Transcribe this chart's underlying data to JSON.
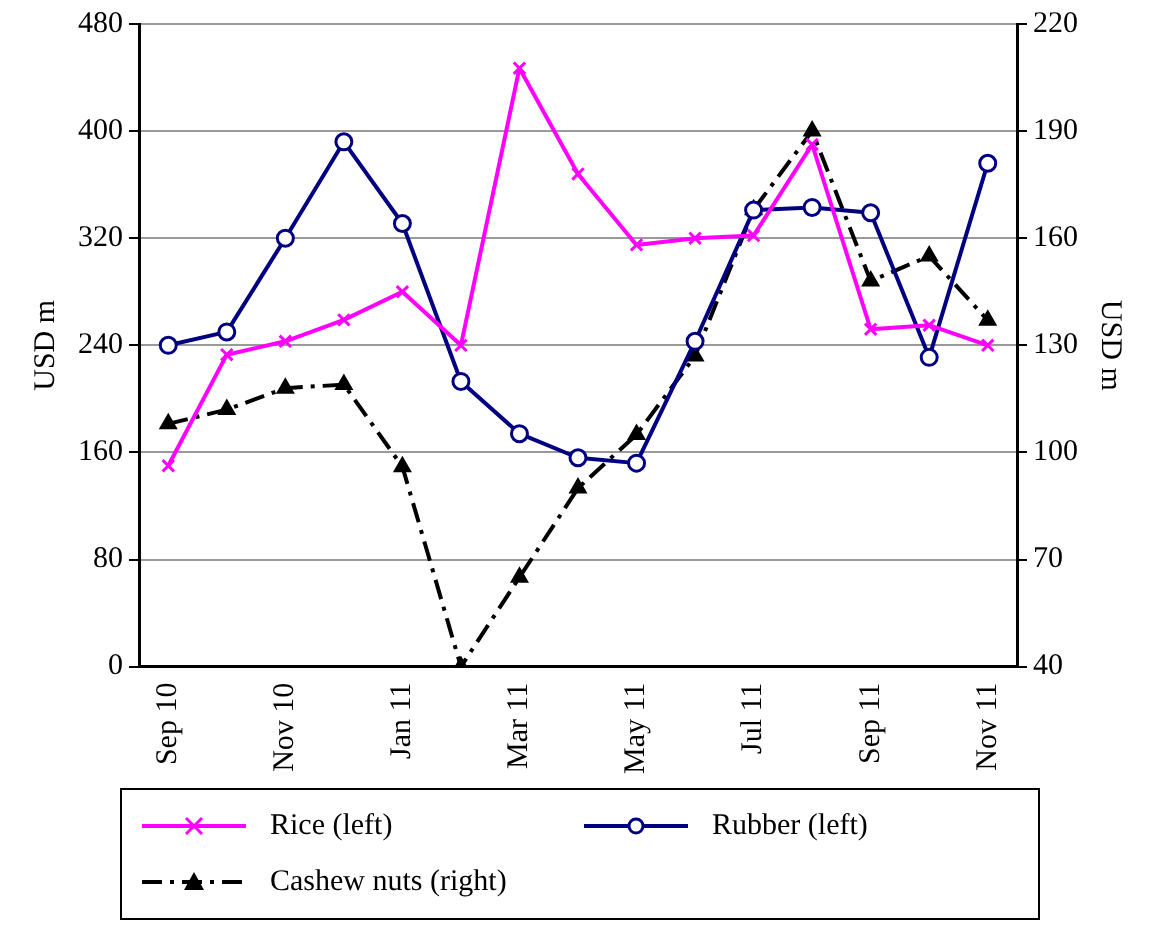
{
  "chart_data": {
    "type": "line",
    "ylabel": "USD m",
    "y2label": "USD m",
    "categories": [
      "Sep 10",
      null,
      "Nov 10",
      null,
      "Jan 11",
      null,
      "Mar 11",
      null,
      "May 11",
      null,
      "Jul 11",
      null,
      "Sep 11",
      null,
      "Nov 11"
    ],
    "series": [
      {
        "name": "Rice (left)",
        "color": "#ff00ff",
        "marker": "cross",
        "line_style": "solid",
        "values": [
          150,
          233,
          243,
          259,
          280,
          240,
          447,
          368,
          315,
          320,
          322,
          390,
          252,
          255,
          240
        ]
      },
      {
        "name": "Rubber (left)",
        "color": "#000080",
        "marker": "circle",
        "line_style": "solid",
        "values": [
          240,
          250,
          320,
          392,
          331,
          213,
          174,
          156,
          152,
          243,
          341,
          343,
          339,
          231,
          376
        ]
      },
      {
        "name": "Cashew nuts (right)",
        "color": "#000000",
        "marker": "triangle",
        "line_style": "dashed",
        "axis": "y2",
        "values": [
          108,
          112,
          118,
          119,
          96,
          40,
          65,
          90,
          105,
          127,
          168,
          190,
          148,
          155,
          137
        ]
      }
    ],
    "ylim": [
      0,
      480
    ],
    "yticks": [
      0,
      80,
      160,
      240,
      320,
      400,
      480
    ],
    "y2lim": [
      40,
      220
    ],
    "y2ticks": [
      40,
      70,
      100,
      130,
      160,
      190,
      220
    ],
    "grid": "y",
    "legend": "bottom"
  }
}
